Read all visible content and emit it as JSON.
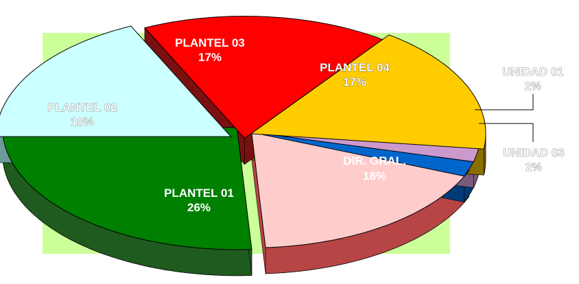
{
  "chart_data": {
    "type": "pie",
    "style": "3d-exploded",
    "slices": [
      {
        "name": "PLANTEL 01",
        "value": 26,
        "label": "26%",
        "color": "#008000",
        "side": "#1f5a1f"
      },
      {
        "name": "PLANTEL 02",
        "value": 18,
        "label": "18%",
        "color": "#ccffff",
        "side": "#6e9a9a"
      },
      {
        "name": "PLANTEL 03",
        "value": 17,
        "label": "17%",
        "color": "#ff0000",
        "side": "#7a1010"
      },
      {
        "name": "PLANTEL 04",
        "value": 17,
        "label": "17%",
        "color": "#ffcc00",
        "side": "#8a6e00"
      },
      {
        "name": "UNIDAD 01",
        "value": 2,
        "label": "2%",
        "color": "#cc99cc",
        "side": "#7a5a7a"
      },
      {
        "name": "UNIDAD 03",
        "value": 2,
        "label": "2%",
        "color": "#0066cc",
        "side": "#003a78"
      },
      {
        "name": "DIR. GRAL.",
        "value": 18,
        "label": "18%",
        "color": "#ffcccc",
        "side": "#b84545"
      }
    ],
    "background_color": "#ccff99"
  }
}
